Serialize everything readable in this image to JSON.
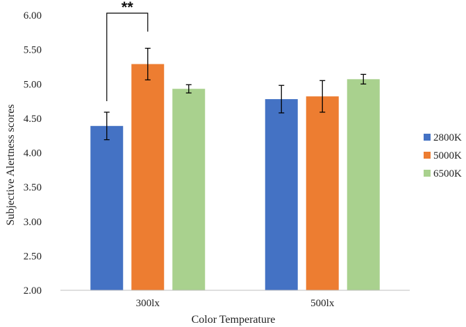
{
  "chart_data": {
    "type": "bar",
    "title": "",
    "xlabel": "Color Temperature",
    "ylabel": "Subjective Alertness scores",
    "ylim": [
      2.0,
      6.0
    ],
    "y_ticks": [
      "2.00",
      "2.50",
      "3.00",
      "3.50",
      "4.00",
      "4.50",
      "5.00",
      "5.50",
      "6.00"
    ],
    "categories": [
      "300lx",
      "500lx"
    ],
    "series": [
      {
        "name": "2800K",
        "color": "#4472C4",
        "values": [
          4.39,
          4.78
        ],
        "errors": [
          0.2,
          0.2
        ]
      },
      {
        "name": "5000K",
        "color": "#ED7D31",
        "values": [
          5.29,
          4.82
        ],
        "errors": [
          0.23,
          0.23
        ]
      },
      {
        "name": "6500K",
        "color": "#A9D18E",
        "values": [
          4.93,
          5.07
        ],
        "errors": [
          0.06,
          0.07
        ]
      }
    ],
    "grid": false,
    "legend_position": "right",
    "annotations": [
      {
        "text": "**",
        "category": "300lx",
        "from_series": "2800K",
        "to_series": "5000K"
      }
    ]
  }
}
